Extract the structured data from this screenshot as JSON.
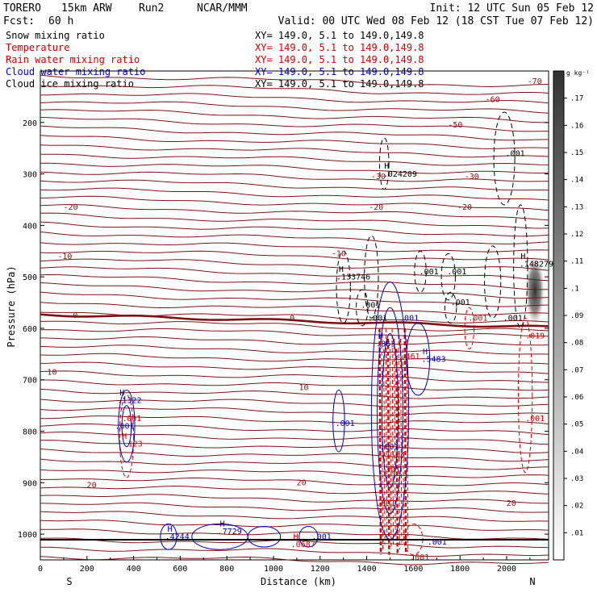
{
  "header": {
    "model": "TORERO",
    "resolution": "15km ARW",
    "run": "Run2",
    "org": "NCAR/MMM",
    "fcst_label": "Fcst:",
    "fcst_value": "60 h",
    "init": "Init: 12 UTC Sun 05 Feb 12",
    "valid": "Valid: 00 UTC Wed 08 Feb 12 (18 CST Tue 07 Feb 12)"
  },
  "fields": [
    {
      "name": "Snow mixing ratio",
      "xy": "XY= 149.0,  5.1 to 149.0,149.8",
      "color": "#000000"
    },
    {
      "name": "Temperature",
      "xy": "XY= 149.0,  5.1 to 149.0,149.8",
      "color": "#cc0000"
    },
    {
      "name": "Rain water mixing ratio",
      "xy": "XY= 149.0,  5.1 to 149.0,149.8",
      "color": "#cc0000"
    },
    {
      "name": "Cloud water mixing ratio",
      "xy": "XY= 149.0,  5.1 to 149.0,149.8",
      "color": "#0000cc"
    },
    {
      "name": "Cloud ice mixing ratio",
      "xy": "XY= 149.0,  5.1 to 149.0,149.8",
      "color": "#000000"
    }
  ],
  "colorbar": {
    "unit": "g kg⁻¹",
    "levels": [
      ".01",
      ".02",
      ".03",
      ".04",
      ".05",
      ".06",
      ".07",
      ".08",
      ".09",
      ".1",
      ".11",
      ".12",
      ".13",
      ".14",
      ".15",
      ".16",
      ".17"
    ]
  },
  "colors": {
    "temperature": "#7a1414",
    "freezing": "#7a1414",
    "rain": "#dd0000",
    "cloud_water": "#0000bb",
    "snow": "#000000",
    "ice": "#000000"
  },
  "chart_data": {
    "type": "contour",
    "xlabel": "Distance (km)",
    "ylabel": "Pressure (hPa)",
    "xlim": [
      0,
      2180
    ],
    "ylim": [
      1050,
      100
    ],
    "xticks": [
      "0",
      "200",
      "400",
      "600",
      "800",
      "1000",
      "1200",
      "1400",
      "1600",
      "1800",
      "2000"
    ],
    "yticks": [
      "200",
      "300",
      "400",
      "500",
      "600",
      "700",
      "800",
      "900",
      "1000"
    ],
    "ends": {
      "left": "S",
      "right": "N"
    },
    "temperature_levels": [
      {
        "label": "-70",
        "x": 2120,
        "p": 125
      },
      {
        "label": "-60",
        "x": 1940,
        "p": 160
      },
      {
        "label": "-50",
        "x": 1780,
        "p": 210
      },
      {
        "label": "-30",
        "x": 1450,
        "p": 310
      },
      {
        "label": "-30",
        "x": 1850,
        "p": 310
      },
      {
        "label": "-20",
        "x": 130,
        "p": 370
      },
      {
        "label": "-20",
        "x": 1440,
        "p": 370
      },
      {
        "label": "-20",
        "x": 1820,
        "p": 370
      },
      {
        "label": "-10",
        "x": 105,
        "p": 465
      },
      {
        "label": "-10",
        "x": 1280,
        "p": 460
      },
      {
        "label": "0",
        "x": 150,
        "p": 580
      },
      {
        "label": "0",
        "x": 1080,
        "p": 585
      },
      {
        "label": "10",
        "x": 50,
        "p": 690
      },
      {
        "label": "10",
        "x": 1130,
        "p": 720
      },
      {
        "label": "20",
        "x": 220,
        "p": 910
      },
      {
        "label": "20",
        "x": 1120,
        "p": 905
      },
      {
        "label": "20",
        "x": 2020,
        "p": 945
      }
    ],
    "field_labels": [
      {
        "text": "H",
        "x": 1475,
        "p": 290,
        "color": "#000000"
      },
      {
        "text": ".024209",
        "x": 1470,
        "p": 305,
        "color": "#000000"
      },
      {
        "text": ".001",
        "x": 1995,
        "p": 265,
        "color": "#000000"
      },
      {
        "text": "H",
        "x": 2060,
        "p": 465,
        "color": "#000000"
      },
      {
        "text": ".148279",
        "x": 2055,
        "p": 480,
        "color": "#000000"
      },
      {
        "text": "H",
        "x": 1280,
        "p": 490,
        "color": "#000000"
      },
      {
        "text": ".133746",
        "x": 1270,
        "p": 505,
        "color": "#000000"
      },
      {
        "text": ".001",
        "x": 1625,
        "p": 495,
        "color": "#000000"
      },
      {
        "text": ".001",
        "x": 1745,
        "p": 495,
        "color": "#000000"
      },
      {
        "text": ".001",
        "x": 1375,
        "p": 560,
        "color": "#000000"
      },
      {
        "text": ".001",
        "x": 1760,
        "p": 555,
        "color": "#000000"
      },
      {
        "text": ".001",
        "x": 1405,
        "p": 585,
        "color": "#000000"
      },
      {
        "text": ".001",
        "x": 1985,
        "p": 585,
        "color": "#000000"
      },
      {
        "text": ".001",
        "x": 1540,
        "p": 585,
        "color": "#0000bb"
      },
      {
        "text": "H",
        "x": 1450,
        "p": 620,
        "color": "#0000bb"
      },
      {
        "text": ".863",
        "x": 1440,
        "p": 635,
        "color": "#0000bb"
      },
      {
        "text": "H",
        "x": 1640,
        "p": 650,
        "color": "#0000bb"
      },
      {
        "text": ".5483",
        "x": 1635,
        "p": 665,
        "color": "#0000bb"
      },
      {
        "text": ".001",
        "x": 1265,
        "p": 790,
        "color": "#0000bb"
      },
      {
        "text": "H",
        "x": 340,
        "p": 730,
        "color": "#0000bb"
      },
      {
        "text": ".1322",
        "x": 330,
        "p": 745,
        "color": "#0000bb"
      },
      {
        "text": ".001",
        "x": 320,
        "p": 795,
        "color": "#0000bb"
      },
      {
        "text": ".001",
        "x": 1455,
        "p": 835,
        "color": "#0000bb"
      },
      {
        "text": "H",
        "x": 770,
        "p": 985,
        "color": "#0000bb"
      },
      {
        "text": ".7729",
        "x": 760,
        "p": 1000,
        "color": "#0000bb"
      },
      {
        "text": "H",
        "x": 545,
        "p": 995,
        "color": "#0000bb"
      },
      {
        "text": ".4244",
        "x": 535,
        "p": 1010,
        "color": "#0000bb"
      },
      {
        "text": ".001",
        "x": 1165,
        "p": 1010,
        "color": "#0000bb"
      },
      {
        "text": ".001",
        "x": 1660,
        "p": 1020,
        "color": "#0000bb"
      },
      {
        "text": ".019",
        "x": 2080,
        "p": 620,
        "color": "#dd0000"
      },
      {
        "text": ".001",
        "x": 1835,
        "p": 585,
        "color": "#dd0000"
      },
      {
        "text": ".461",
        "x": 1545,
        "p": 660,
        "color": "#dd0000"
      },
      {
        "text": ".001",
        "x": 350,
        "p": 780,
        "color": "#dd0000"
      },
      {
        "text": "H",
        "x": 350,
        "p": 815,
        "color": "#dd0000"
      },
      {
        "text": ".123",
        "x": 355,
        "p": 830,
        "color": "#dd0000"
      },
      {
        "text": ".001",
        "x": 2080,
        "p": 780,
        "color": "#dd0000"
      },
      {
        "text": ".1163",
        "x": 1460,
        "p": 850,
        "color": "#dd0000"
      },
      {
        "text": ".301",
        "x": 1460,
        "p": 880,
        "color": "#dd0000"
      },
      {
        "text": ".001",
        "x": 1440,
        "p": 945,
        "color": "#dd0000"
      },
      {
        "text": "H",
        "x": 1085,
        "p": 1010,
        "color": "#dd0000"
      },
      {
        "text": ".0687",
        "x": 1075,
        "p": 1025,
        "color": "#dd0000"
      },
      {
        "text": ".001",
        "x": 1585,
        "p": 1050,
        "color": "#dd0000"
      }
    ],
    "grid": false
  }
}
